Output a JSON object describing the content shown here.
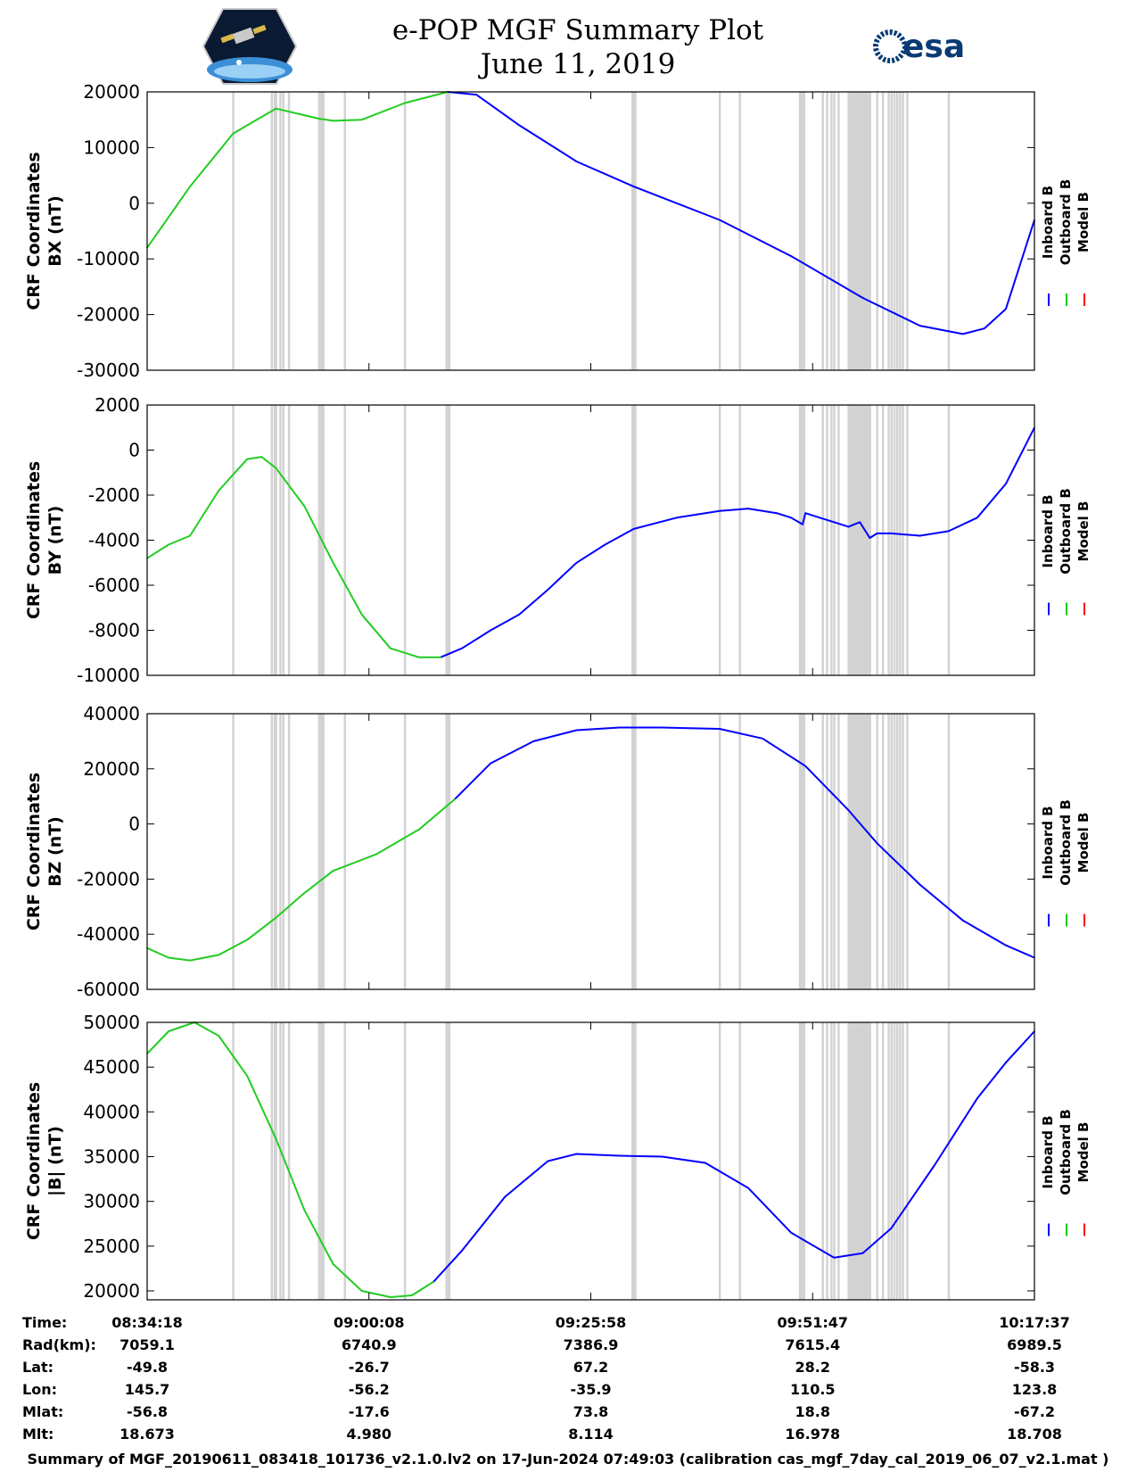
{
  "header": {
    "title": "e-POP MGF Summary Plot",
    "date": "June 11, 2019",
    "left_logo": "cassiope-satellite-logo",
    "right_logo_text": "esa"
  },
  "legend": {
    "entries": [
      {
        "name": "Inboard B",
        "color": "#0000ff"
      },
      {
        "name": "Outboard B",
        "color": "#00cc00"
      },
      {
        "name": "Model B",
        "color": "#ff0000"
      }
    ]
  },
  "colors": {
    "inboard": "#0000ff",
    "outboard": "#22cc22",
    "model": "#ff0000",
    "gap_band": "#d3d3d3"
  },
  "chart_data": [
    {
      "type": "line",
      "panel": "bx",
      "ylabel_line1": "CRF Coordinates",
      "ylabel_line2": "BX (nT)",
      "ylim": [
        -30000,
        20000
      ],
      "yticks": [
        20000,
        10000,
        0,
        -10000,
        -20000,
        -30000
      ],
      "ytick_labels": [
        "20000",
        "10000",
        "0",
        "-10000",
        "-20000",
        "-30000"
      ],
      "xlim": [
        0,
        6200
      ],
      "switch_t": 2200,
      "series": [
        {
          "name": "Inboard/Outboard B",
          "t": [
            0,
            300,
            600,
            900,
            1200,
            1300,
            1500,
            1800,
            2100,
            2300,
            2600,
            3000,
            3400,
            3600,
            4000,
            4500,
            5000,
            5400,
            5700,
            5850,
            6000,
            6200
          ],
          "values": [
            -8000,
            3000,
            12500,
            17000,
            15200,
            14800,
            15000,
            18000,
            20000,
            19500,
            14000,
            7500,
            3000,
            1000,
            -3000,
            -9500,
            -17000,
            -22000,
            -23500,
            -22500,
            -19000,
            -3000
          ]
        }
      ]
    },
    {
      "type": "line",
      "panel": "by",
      "ylabel_line1": "CRF Coordinates",
      "ylabel_line2": "BY (nT)",
      "ylim": [
        -10000,
        2000
      ],
      "yticks": [
        2000,
        0,
        -2000,
        -4000,
        -6000,
        -8000,
        -10000
      ],
      "ytick_labels": [
        "2000",
        "0",
        "-2000",
        "-4000",
        "-6000",
        "-8000",
        "-10000"
      ],
      "xlim": [
        0,
        6200
      ],
      "switch_t": 2050,
      "series": [
        {
          "name": "Inboard/Outboard B",
          "t": [
            0,
            150,
            300,
            500,
            700,
            800,
            900,
            1100,
            1300,
            1500,
            1700,
            1900,
            2050,
            2200,
            2400,
            2600,
            2800,
            3000,
            3200,
            3400,
            3700,
            4000,
            4200,
            4400,
            4500,
            4580,
            4600,
            4700,
            4800,
            4900,
            4980,
            5000,
            5050,
            5100,
            5200,
            5400,
            5600,
            5800,
            6000,
            6200
          ],
          "values": [
            -4800,
            -4200,
            -3800,
            -1800,
            -400,
            -300,
            -800,
            -2500,
            -5000,
            -7300,
            -8800,
            -9200,
            -9200,
            -8800,
            -8000,
            -7300,
            -6200,
            -5000,
            -4200,
            -3500,
            -3000,
            -2700,
            -2600,
            -2800,
            -3000,
            -3300,
            -2800,
            -3000,
            -3200,
            -3400,
            -3200,
            -3400,
            -3900,
            -3700,
            -3700,
            -3800,
            -3600,
            -3000,
            -1500,
            1000
          ]
        }
      ]
    },
    {
      "type": "line",
      "panel": "bz",
      "ylabel_line1": "CRF Coordinates",
      "ylabel_line2": "BZ (nT)",
      "ylim": [
        -60000,
        40000
      ],
      "yticks": [
        40000,
        20000,
        0,
        -20000,
        -40000,
        -60000
      ],
      "ytick_labels": [
        "40000",
        "20000",
        "0",
        "-20000",
        "-40000",
        "-60000"
      ],
      "xlim": [
        0,
        6200
      ],
      "switch_t": 2150,
      "series": [
        {
          "name": "Inboard/Outboard B",
          "t": [
            0,
            150,
            300,
            500,
            700,
            900,
            1100,
            1300,
            1600,
            1900,
            2150,
            2400,
            2700,
            3000,
            3300,
            3600,
            4000,
            4300,
            4600,
            4900,
            5100,
            5400,
            5700,
            6000,
            6200
          ],
          "values": [
            -45000,
            -48500,
            -49500,
            -47500,
            -42000,
            -34000,
            -25000,
            -17000,
            -11000,
            -2000,
            9000,
            22000,
            30000,
            34000,
            35000,
            35000,
            34500,
            31000,
            21000,
            5000,
            -7000,
            -22000,
            -35000,
            -44000,
            -48500
          ]
        }
      ]
    },
    {
      "type": "line",
      "panel": "bmag",
      "ylabel_line1": "CRF Coordinates",
      "ylabel_line2": "|B| (nT)",
      "ylim": [
        19000,
        50000
      ],
      "yticks": [
        50000,
        45000,
        40000,
        35000,
        30000,
        25000,
        20000
      ],
      "ytick_labels": [
        "50000",
        "45000",
        "40000",
        "35000",
        "30000",
        "25000",
        "20000"
      ],
      "xlim": [
        0,
        6200
      ],
      "switch_t": 2000,
      "series": [
        {
          "name": "Inboard/Outboard B",
          "t": [
            0,
            150,
            330,
            500,
            700,
            900,
            1100,
            1300,
            1500,
            1700,
            1850,
            2000,
            2200,
            2500,
            2800,
            3000,
            3300,
            3600,
            3900,
            4200,
            4500,
            4800,
            5000,
            5200,
            5500,
            5800,
            6000,
            6200
          ],
          "values": [
            46500,
            49000,
            50000,
            48500,
            44000,
            37000,
            29000,
            23000,
            20000,
            19300,
            19500,
            21000,
            24500,
            30500,
            34500,
            35300,
            35100,
            35000,
            34300,
            31500,
            26500,
            23700,
            24200,
            27000,
            34000,
            41500,
            45500,
            49000
          ]
        }
      ]
    }
  ],
  "gap_bands_t": [
    600,
    870,
    890,
    900,
    930,
    950,
    990,
    1200,
    1205,
    1210,
    1215,
    1220,
    1225,
    1230,
    1380,
    1800,
    2090,
    2100,
    2110,
    3390,
    3400,
    3410,
    4000,
    4140,
    4560,
    4570,
    4580,
    4590,
    4720,
    4750,
    4780,
    4800,
    4830,
    4900,
    4910,
    4920,
    4930,
    4940,
    4950,
    4960,
    4970,
    4980,
    4990,
    5000,
    5010,
    5020,
    5030,
    5040,
    5050,
    5100,
    5140,
    5180,
    5200,
    5220,
    5240,
    5260,
    5280,
    5310,
    5600
  ],
  "xticks": [
    {
      "t": 0,
      "time": "08:34:18",
      "rad": "7059.1",
      "lat": "-49.8",
      "lon": "145.7",
      "mlat": "-56.8",
      "mlt": "18.673"
    },
    {
      "t": 1550,
      "time": "09:00:08",
      "rad": "6740.9",
      "lat": "-26.7",
      "lon": "-56.2",
      "mlat": "-17.6",
      "mlt": "4.980"
    },
    {
      "t": 3100,
      "time": "09:25:58",
      "rad": "7386.9",
      "lat": "67.2",
      "lon": "-35.9",
      "mlat": "73.8",
      "mlt": "8.114"
    },
    {
      "t": 4650,
      "time": "09:51:47",
      "rad": "7615.4",
      "lat": "28.2",
      "lon": "110.5",
      "mlat": "18.8",
      "mlt": "16.978"
    },
    {
      "t": 6200,
      "time": "10:17:37",
      "rad": "6989.5",
      "lat": "-58.3",
      "lon": "123.8",
      "mlat": "-67.2",
      "mlt": "18.708"
    }
  ],
  "row_labels": {
    "time": "Time:",
    "rad": "Rad(km):",
    "lat": "Lat:",
    "lon": "Lon:",
    "mlat": "Mlat:",
    "mlt": "Mlt:"
  },
  "footer": "Summary of MGF_20190611_083418_101736_v2.1.0.lv2 on 17-Jun-2024 07:49:03 (calibration cas_mgf_7day_cal_2019_06_07_v2.1.mat )"
}
